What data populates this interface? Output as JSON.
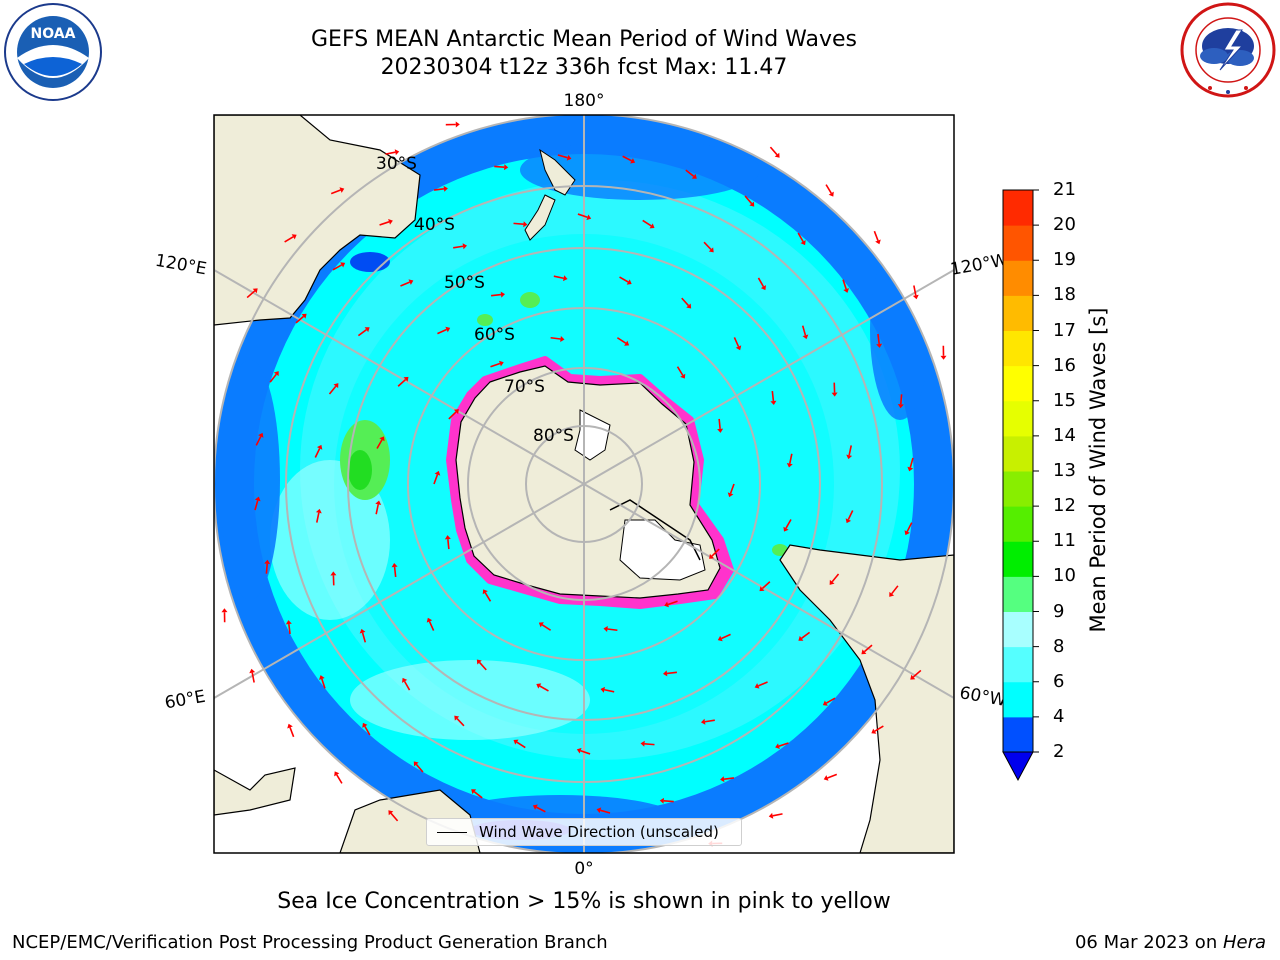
{
  "header": {
    "title_line1": "GEFS MEAN Antarctic Mean Period of Wind Waves",
    "title_line2": "20230304 t12z 336h fcst   Max: 11.47"
  },
  "logos": {
    "noaa_text": "NOAA",
    "noaa_ring_text": "NATIONAL OCEANIC AND ATMOSPHERIC ADMINISTRATION · U.S. DEPARTMENT OF COMMERCE",
    "nws_ring_text": "NATIONAL WEATHER SERVICE"
  },
  "map": {
    "projection": "south polar stereographic",
    "longitude_labels": {
      "top": "180°",
      "bottom": "0°",
      "upper_left": "120°E",
      "upper_right": "120°W",
      "lower_left": "60°E",
      "lower_right": "60°W"
    },
    "latitude_labels": [
      "30°S",
      "40°S",
      "50°S",
      "60°S",
      "70°S",
      "80°S"
    ],
    "legend_label": "Wind Wave Direction (unscaled)",
    "arrow_color": "#ff0000",
    "ocean_base_color": "#00ffff",
    "land_color": "#efedd9",
    "sea_ice_color": "#ff33cc"
  },
  "colorbar": {
    "title": "Mean Period of Wind Waves [s]",
    "ticks": [
      "2",
      "4",
      "6",
      "8",
      "9",
      "10",
      "11",
      "12",
      "13",
      "14",
      "15",
      "16",
      "17",
      "18",
      "19",
      "20",
      "21"
    ],
    "colors": [
      "#0050ff",
      "#00ffff",
      "#55ffff",
      "#a8ffff",
      "#55ff80",
      "#00ee00",
      "#55ee00",
      "#88ee00",
      "#c8f000",
      "#e6ff00",
      "#ffff00",
      "#ffe600",
      "#ffbb00",
      "#ff8c00",
      "#ff5500",
      "#ff2a00",
      "#ff0000"
    ],
    "under_color": "#0000ee"
  },
  "footer": {
    "note": "Sea Ice Concentration > 15% is shown in pink to yellow",
    "left": "NCEP/EMC/Verification Post Processing Product Generation Branch",
    "right_prefix": "06 Mar 2023 on ",
    "right_host": "Hera"
  }
}
